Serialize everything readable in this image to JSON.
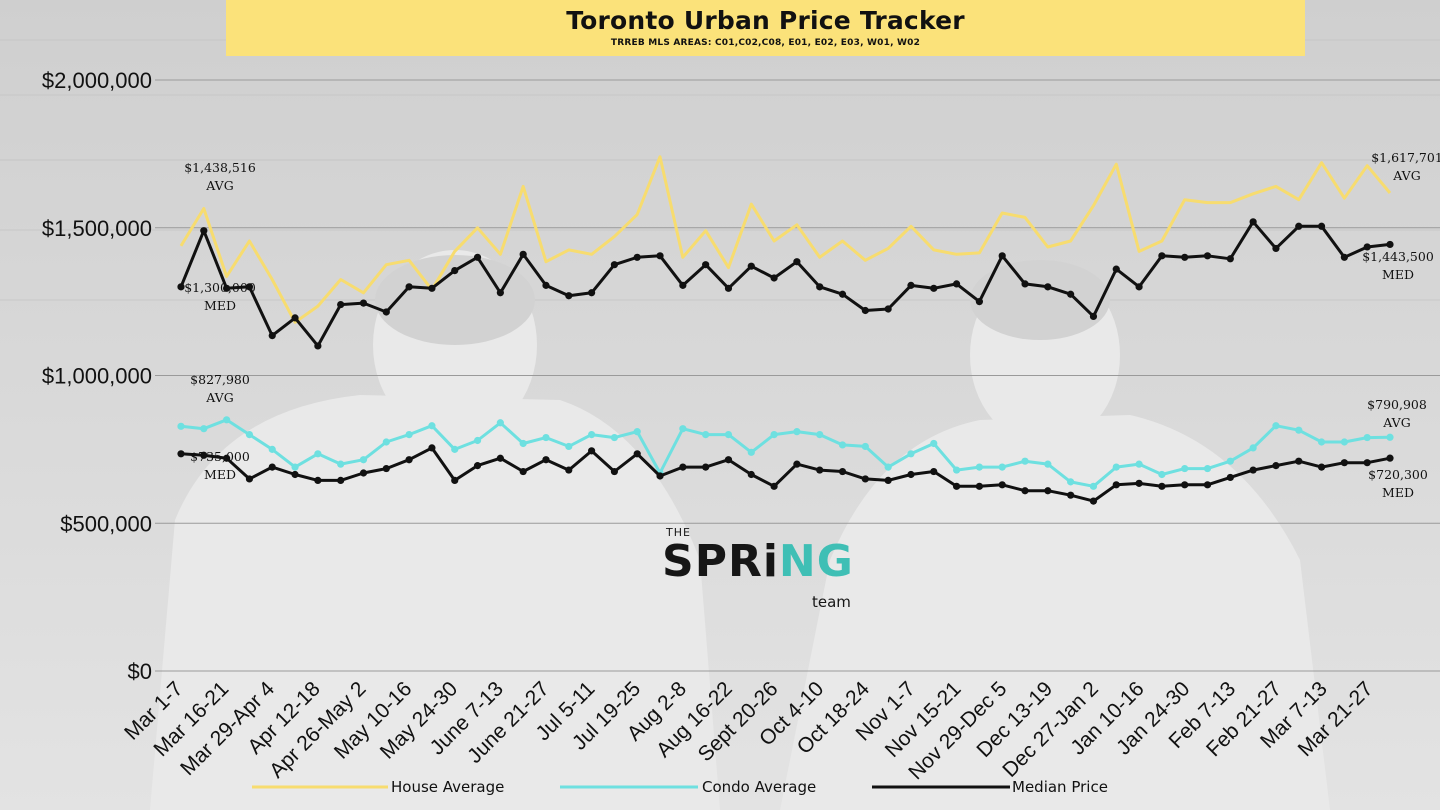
{
  "header": {
    "title": "Toronto Urban Price Tracker",
    "subtitle": "TRREB MLS AREAS: C01,C02,C08, E01, E02, E03, W01, W02"
  },
  "logo": {
    "top_text": "THE",
    "word_part1": "SPRi",
    "word_part2": "NG",
    "bottom_text": "team"
  },
  "colors": {
    "house": "#f7dc6f",
    "condo": "#6ee0e0",
    "median": "#111111",
    "banner": "#fbe27a",
    "accent": "#3fbfb5"
  },
  "chart_data": {
    "type": "line",
    "title": "Toronto Urban Price Tracker",
    "subtitle": "TRREB MLS AREAS: C01,C02,C08, E01, E02, E03, W01, W02",
    "ylim": [
      0,
      2000000
    ],
    "grid": true,
    "legend_position": "bottom",
    "y_ticks": [
      {
        "value": 0,
        "label": "$0"
      },
      {
        "value": 500000,
        "label": "$500,000"
      },
      {
        "value": 1000000,
        "label": "$1,000,000"
      },
      {
        "value": 1500000,
        "label": "$1,500,000"
      },
      {
        "value": 2000000,
        "label": "$2,000,000"
      }
    ],
    "x_tick_labels": [
      "Mar 1-7",
      "Mar 16-21",
      "Mar 29-Apr 4",
      "Apr 12-18",
      "Apr 26-May 2",
      "May 10-16",
      "May 24-30",
      "June 7-13",
      "June 21-27",
      "Jul 5-11",
      "Jul 19-25",
      "Aug 2-8",
      "Aug 16-22",
      "Sept 20-26",
      "Oct 4-10",
      "Oct 18-24",
      "Nov 1-7",
      "Nov 15-21",
      "Nov 29-Dec 5",
      "Dec 13-19",
      "Dec 27-Jan 2",
      "Jan 10-16",
      "Jan 24-30",
      "Feb 7-13",
      "Feb 21-27",
      "Mar 7-13",
      "Mar 21-27"
    ],
    "series": [
      {
        "name": "House Average",
        "color": "#f7dc6f",
        "markers": false,
        "values": [
          1438516,
          1565000,
          1335000,
          1455000,
          1325000,
          1180000,
          1235000,
          1325000,
          1280000,
          1375000,
          1390000,
          1290000,
          1420000,
          1500000,
          1410000,
          1640000,
          1385000,
          1425000,
          1410000,
          1470000,
          1545000,
          1740000,
          1400000,
          1490000,
          1365000,
          1580000,
          1455000,
          1510000,
          1400000,
          1455000,
          1390000,
          1430000,
          1505000,
          1425000,
          1410000,
          1415000,
          1550000,
          1535000,
          1435000,
          1455000,
          1575000,
          1715000,
          1420000,
          1455000,
          1595000,
          1585000,
          1585000,
          1615000,
          1640000,
          1595000,
          1720000,
          1600000,
          1710000,
          1617701
        ]
      },
      {
        "name": "Condo Average",
        "color": "#6ee0e0",
        "markers": true,
        "values": [
          827980,
          820000,
          850000,
          800000,
          750000,
          690000,
          735000,
          700000,
          715000,
          775000,
          800000,
          830000,
          750000,
          780000,
          840000,
          770000,
          790000,
          760000,
          800000,
          790000,
          810000,
          670000,
          820000,
          800000,
          800000,
          740000,
          800000,
          810000,
          800000,
          765000,
          760000,
          690000,
          735000,
          770000,
          680000,
          690000,
          690000,
          710000,
          700000,
          640000,
          625000,
          690000,
          700000,
          665000,
          685000,
          685000,
          710000,
          755000,
          830000,
          815000,
          775000,
          775000,
          790000,
          790908
        ]
      },
      {
        "name": "Median Price",
        "color": "#111111",
        "markers": true,
        "values": [
          1300000,
          1490000,
          1295000,
          1300000,
          1135000,
          1195000,
          1100000,
          1240000,
          1245000,
          1215000,
          1300000,
          1295000,
          1355000,
          1400000,
          1280000,
          1410000,
          1305000,
          1270000,
          1280000,
          1375000,
          1400000,
          1405000,
          1305000,
          1375000,
          1295000,
          1370000,
          1330000,
          1385000,
          1300000,
          1275000,
          1220000,
          1225000,
          1305000,
          1295000,
          1310000,
          1250000,
          1405000,
          1310000,
          1300000,
          1275000,
          1200000,
          1360000,
          1300000,
          1405000,
          1400000,
          1405000,
          1395000,
          1520000,
          1430000,
          1505000,
          1505000,
          1400000,
          1435000,
          1443500
        ]
      },
      {
        "name": "Median Price",
        "color": "#111111",
        "markers": true,
        "legend": false,
        "values": [
          735000,
          730000,
          720000,
          650000,
          690000,
          665000,
          645000,
          645000,
          670000,
          685000,
          715000,
          755000,
          645000,
          695000,
          720000,
          675000,
          715000,
          680000,
          745000,
          675000,
          735000,
          660000,
          690000,
          690000,
          715000,
          665000,
          625000,
          700000,
          680000,
          675000,
          650000,
          645000,
          665000,
          675000,
          625000,
          625000,
          630000,
          610000,
          610000,
          595000,
          575000,
          630000,
          635000,
          625000,
          630000,
          630000,
          655000,
          680000,
          695000,
          710000,
          690000,
          705000,
          705000,
          720300
        ]
      }
    ],
    "annotations": [
      {
        "line1": "$1,438,516",
        "line2": "AVG"
      },
      {
        "line1": "$1,300,000",
        "line2": "MED"
      },
      {
        "line1": "$827,980",
        "line2": "AVG"
      },
      {
        "line1": "$735,000",
        "line2": "MED"
      },
      {
        "line1": "$1,617,701",
        "line2": "AVG"
      },
      {
        "line1": "$1,443,500",
        "line2": "MED"
      },
      {
        "line1": "$790,908",
        "line2": "AVG"
      },
      {
        "line1": "$720,300",
        "line2": "MED"
      }
    ],
    "legend": [
      "House Average",
      "Condo Average",
      "Median Price"
    ]
  }
}
